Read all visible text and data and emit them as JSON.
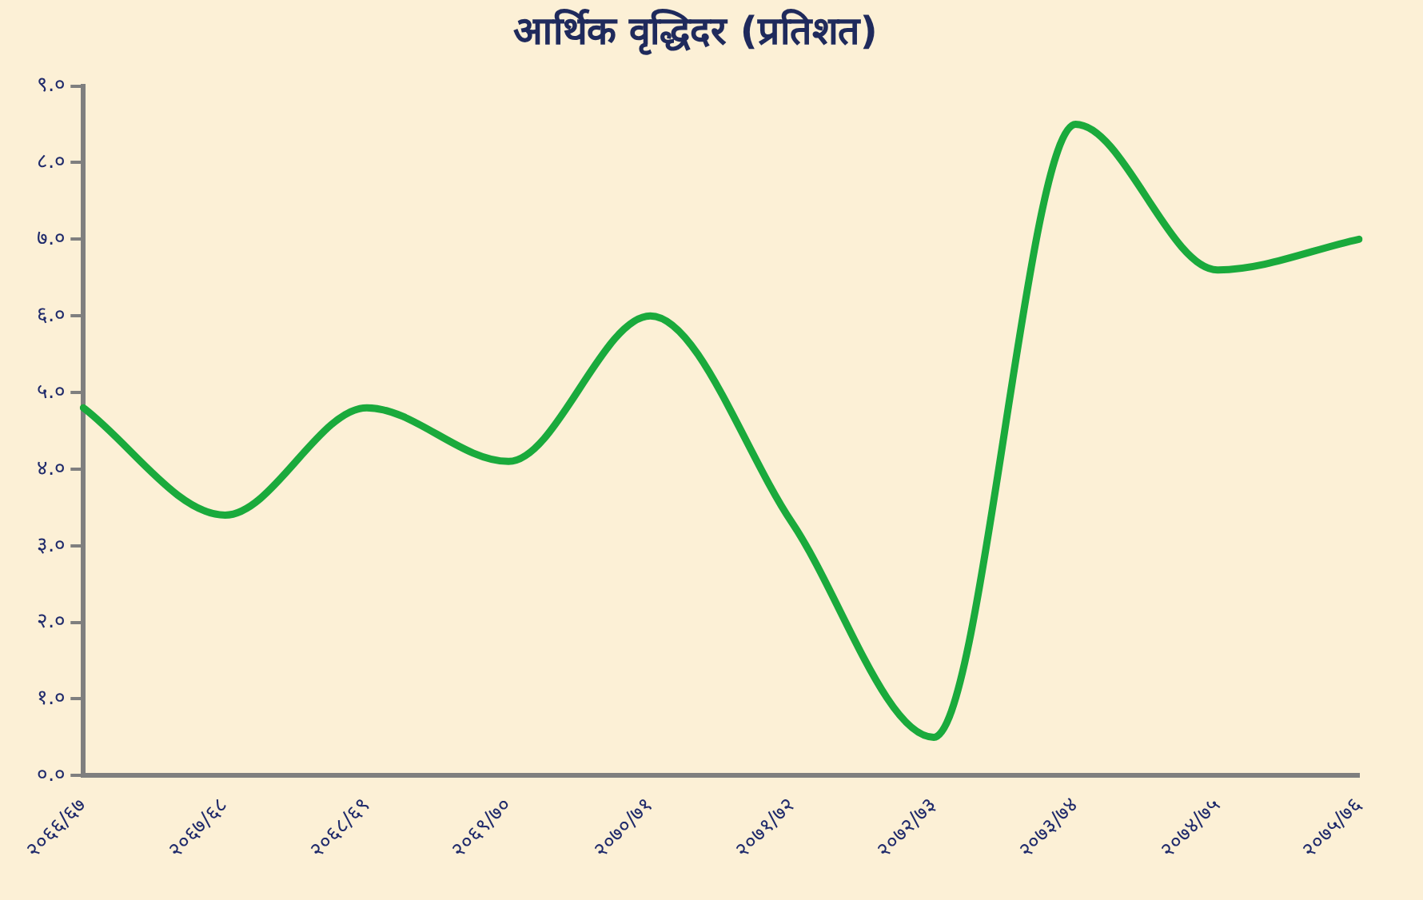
{
  "chart_data": {
    "type": "line",
    "title": "आर्थिक वृद्धिदर (प्रतिशत)",
    "categories": [
      "२०६६/६७",
      "२०६७/६८",
      "२०६८/६९",
      "२०६९/७०",
      "२०७०/७१",
      "२०७१/७२",
      "२०७२/७३",
      "२०७३/७४",
      "२०७४/७५",
      "२०७५/७६"
    ],
    "series": [
      {
        "color": "#1aaa3c",
        "values": [
          4.8,
          3.4,
          4.8,
          4.1,
          6.0,
          3.3,
          0.5,
          8.5,
          6.6,
          7.0
        ]
      }
    ],
    "ylim": [
      0,
      9
    ],
    "yticks": [
      {
        "value": 0,
        "label": "०.०"
      },
      {
        "value": 1,
        "label": "१.०"
      },
      {
        "value": 2,
        "label": "२.०"
      },
      {
        "value": 3,
        "label": "३.०"
      },
      {
        "value": 4,
        "label": "४.०"
      },
      {
        "value": 5,
        "label": "५.०"
      },
      {
        "value": 6,
        "label": "६.०"
      },
      {
        "value": 7,
        "label": "७.०"
      },
      {
        "value": 8,
        "label": "८.०"
      },
      {
        "value": 9,
        "label": "९.०"
      }
    ],
    "grid": false,
    "legend": false,
    "marker": "none",
    "line_style": "solid"
  }
}
